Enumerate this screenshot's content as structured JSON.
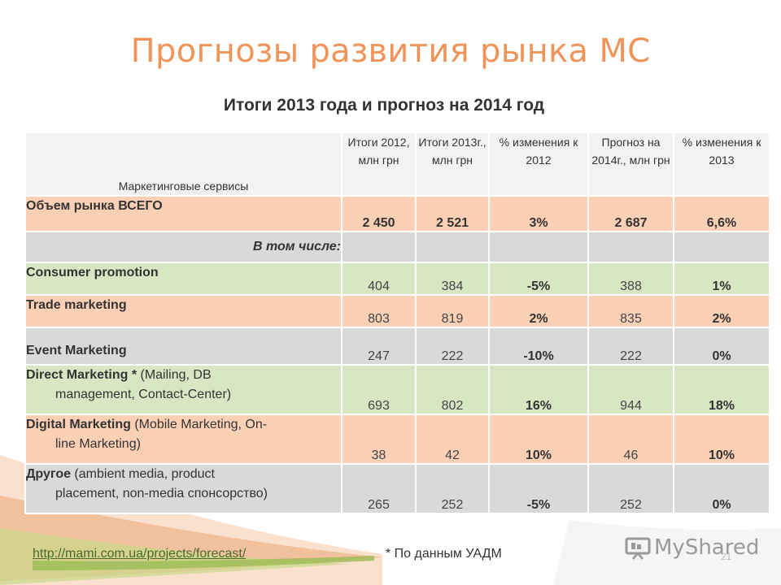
{
  "slide": {
    "title": "Прогнозы развития рынка МС",
    "subtitle": "Итоги 2013 года и прогноз на 2014 год"
  },
  "table": {
    "headers": [
      "Маркетинговые сервисы",
      "Итоги 2012, млн грн",
      "Итоги 2013г., млн грн",
      "% изменения к 2012",
      "Прогноз на 2014г., млн грн",
      "% изменения к 2013"
    ],
    "total": {
      "label": "Объем рынка ВСЕГО",
      "values": [
        "2 450",
        "2 521",
        "3%",
        "2 687",
        "6,6%"
      ]
    },
    "subheader": "В том числе:",
    "rows": [
      {
        "name": "Consumer promotion",
        "line2": "",
        "values": [
          "404",
          "384",
          "-5%",
          "388",
          "1%"
        ]
      },
      {
        "name": "Trade marketing",
        "line2": "",
        "values": [
          "803",
          "819",
          "2%",
          "835",
          "2%"
        ]
      },
      {
        "name": "Event Marketing",
        "line2": "",
        "values": [
          "247",
          "222",
          "-10%",
          "222",
          "0%"
        ]
      },
      {
        "name": "Direct Marketing *",
        "detail": " (Mailing, DB",
        "line2": "management, Contact-Center)",
        "values": [
          "693",
          "802",
          "16%",
          "944",
          "18%"
        ]
      },
      {
        "name": "Digital Marketing",
        "detail": " (Mobile Marketing, On-",
        "line2": "line Marketing)",
        "values": [
          "38",
          "42",
          "10%",
          "46",
          "10%"
        ]
      },
      {
        "name": "Другое",
        "detail": " (ambient media, product",
        "line2": "placement, non-media спонсорство)",
        "values": [
          "265",
          "252",
          "-5%",
          "252",
          "0%"
        ]
      }
    ]
  },
  "footer": {
    "link": "http://mami.com.ua/projects/forecast/",
    "note": "* По данным УАДМ",
    "page_number": "21",
    "logo_text": "MyShared"
  },
  "colors": {
    "title": "#f0945a",
    "header_bg": "#f2f2f2",
    "orange_row": "#fbd0b4",
    "green_row": "#d8e6c4",
    "gray_row": "#d9d9d9",
    "link": "#4a6a2a"
  }
}
